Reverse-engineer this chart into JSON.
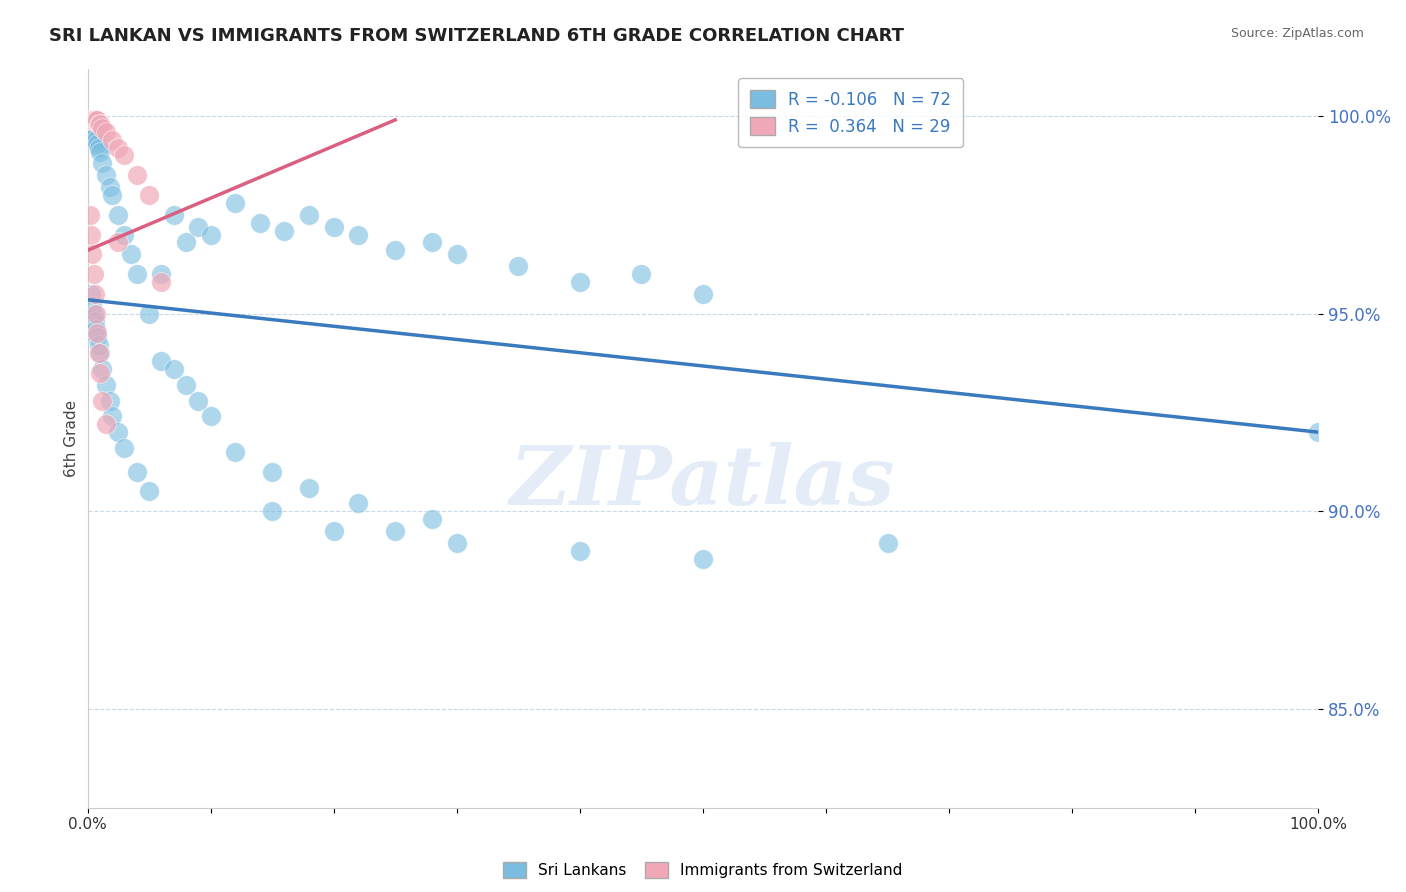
{
  "title": "SRI LANKAN VS IMMIGRANTS FROM SWITZERLAND 6TH GRADE CORRELATION CHART",
  "source_text": "Source: ZipAtlas.com",
  "ylabel": "6th Grade",
  "background_color": "#ffffff",
  "watermark": "ZIPatlas",
  "blue_color": "#7bbde0",
  "pink_color": "#f0a8b8",
  "trendline_blue": "#3a7abf",
  "trendline_pink": "#d96080",
  "grid_color": "#c8daea",
  "ytick_color": "#4472c4",
  "title_fontsize": 13,
  "blue_scatter_x": [
    0.002,
    0.003,
    0.004,
    0.005,
    0.006,
    0.007,
    0.008,
    0.009,
    0.01,
    0.012,
    0.015,
    0.018,
    0.02,
    0.025,
    0.03,
    0.035,
    0.04,
    0.05,
    0.06,
    0.07,
    0.08,
    0.09,
    0.1,
    0.12,
    0.14,
    0.16,
    0.18,
    0.2,
    0.22,
    0.25,
    0.28,
    0.3,
    0.35,
    0.4,
    0.45,
    0.5,
    0.003,
    0.004,
    0.005,
    0.006,
    0.007,
    0.008,
    0.009,
    0.01,
    0.012,
    0.015,
    0.018,
    0.02,
    0.025,
    0.03,
    0.04,
    0.05,
    0.06,
    0.07,
    0.08,
    0.09,
    0.1,
    0.12,
    0.15,
    0.18,
    0.22,
    0.28,
    0.15,
    0.2,
    0.25,
    0.3,
    0.4,
    0.5,
    0.65,
    1.0
  ],
  "blue_scatter_y": [
    0.999,
    0.998,
    0.997,
    0.996,
    0.995,
    0.994,
    0.993,
    0.992,
    0.991,
    0.988,
    0.985,
    0.982,
    0.98,
    0.975,
    0.97,
    0.965,
    0.96,
    0.95,
    0.96,
    0.975,
    0.968,
    0.972,
    0.97,
    0.978,
    0.973,
    0.971,
    0.975,
    0.972,
    0.97,
    0.966,
    0.968,
    0.965,
    0.962,
    0.958,
    0.96,
    0.955,
    0.955,
    0.952,
    0.95,
    0.948,
    0.946,
    0.944,
    0.942,
    0.94,
    0.936,
    0.932,
    0.928,
    0.924,
    0.92,
    0.916,
    0.91,
    0.905,
    0.938,
    0.936,
    0.932,
    0.928,
    0.924,
    0.915,
    0.91,
    0.906,
    0.902,
    0.898,
    0.9,
    0.895,
    0.895,
    0.892,
    0.89,
    0.888,
    0.892,
    0.92
  ],
  "pink_scatter_x": [
    0.002,
    0.003,
    0.004,
    0.005,
    0.006,
    0.007,
    0.008,
    0.009,
    0.01,
    0.012,
    0.015,
    0.02,
    0.025,
    0.03,
    0.04,
    0.05,
    0.002,
    0.003,
    0.004,
    0.005,
    0.006,
    0.007,
    0.008,
    0.009,
    0.01,
    0.012,
    0.015,
    0.025,
    0.06
  ],
  "pink_scatter_y": [
    0.999,
    0.999,
    0.999,
    0.999,
    0.999,
    0.999,
    0.999,
    0.998,
    0.998,
    0.997,
    0.996,
    0.994,
    0.992,
    0.99,
    0.985,
    0.98,
    0.975,
    0.97,
    0.965,
    0.96,
    0.955,
    0.95,
    0.945,
    0.94,
    0.935,
    0.928,
    0.922,
    0.968,
    0.958
  ],
  "blue_trend_x": [
    0.0,
    1.0
  ],
  "blue_trend_y": [
    0.9535,
    0.92
  ],
  "pink_trend_x": [
    0.0,
    0.25
  ],
  "pink_trend_y": [
    0.966,
    0.999
  ],
  "yticks": [
    0.85,
    0.9,
    0.95,
    1.0
  ],
  "ytick_labels": [
    "85.0%",
    "90.0%",
    "95.0%",
    "100.0%"
  ],
  "xtick_positions": [
    0.0,
    0.1,
    0.2,
    0.3,
    0.4,
    0.5,
    1.0
  ],
  "xtick_labels": [
    "0.0%",
    "",
    "",
    "",
    "",
    "",
    "100.0%"
  ],
  "xlim": [
    0.0,
    1.0
  ],
  "ylim": [
    0.825,
    1.012
  ]
}
